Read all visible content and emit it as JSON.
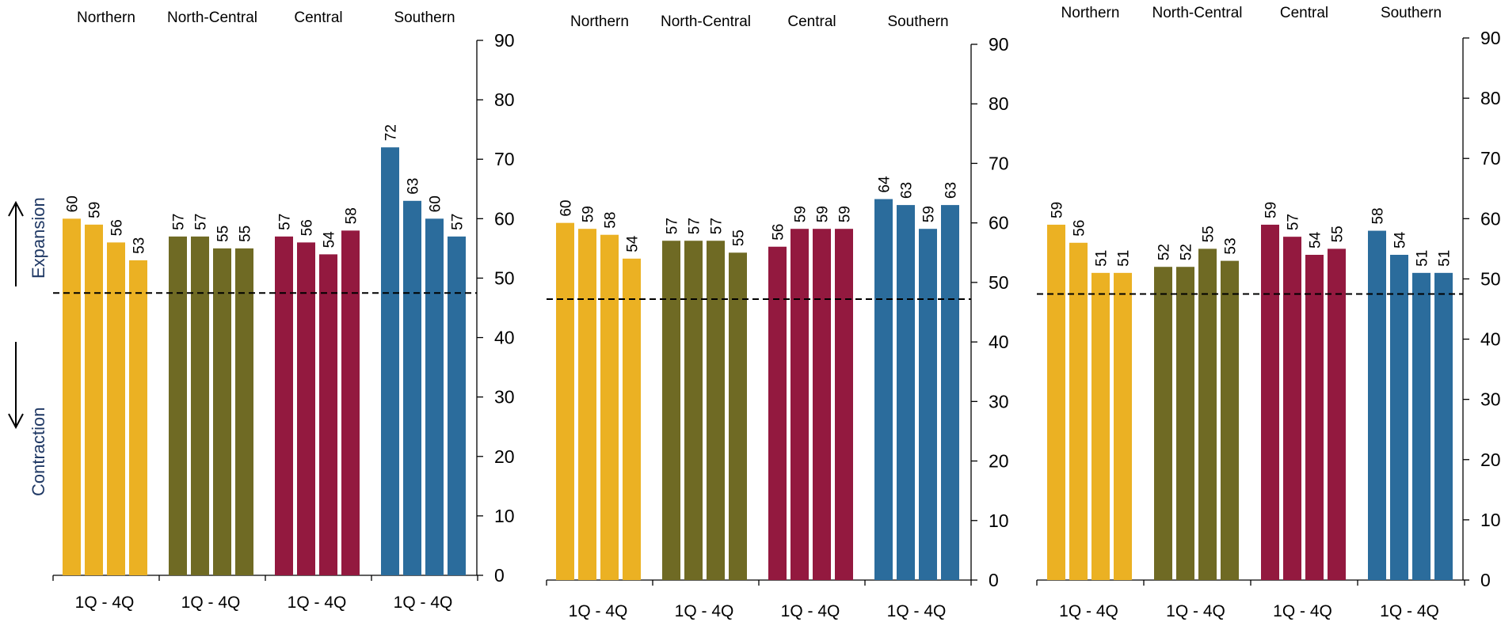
{
  "colors": {
    "Northern": "#EBB123",
    "North-Central": "#6F6A24",
    "Central": "#93193F",
    "Southern": "#2B6C9C",
    "axis": "#000000",
    "side_label": "#1F3864"
  },
  "side_labels": {
    "expansion": "Expansion",
    "contraction": "Contraction"
  },
  "chart_data": [
    {
      "type": "bar",
      "groups": [
        "Northern",
        "North-Central",
        "Central",
        "Southern"
      ],
      "group_xlabel": "1Q  -  4Q",
      "series": [
        {
          "name": "Northern",
          "values": [
            60,
            59,
            56,
            53
          ]
        },
        {
          "name": "North-Central",
          "values": [
            57,
            57,
            55,
            55
          ]
        },
        {
          "name": "Central",
          "values": [
            57,
            56,
            54,
            58
          ]
        },
        {
          "name": "Southern",
          "values": [
            72,
            63,
            60,
            57
          ]
        }
      ],
      "ylim": [
        0,
        90
      ],
      "yticks": [
        0,
        10,
        20,
        30,
        40,
        50,
        60,
        70,
        80,
        90
      ],
      "reference_line": 47.5
    },
    {
      "type": "bar",
      "groups": [
        "Northern",
        "North-Central",
        "Central",
        "Southern"
      ],
      "group_xlabel": "1Q  -  4Q",
      "series": [
        {
          "name": "Northern",
          "values": [
            60,
            59,
            58,
            54
          ]
        },
        {
          "name": "North-Central",
          "values": [
            57,
            57,
            57,
            55
          ]
        },
        {
          "name": "Central",
          "values": [
            56,
            59,
            59,
            59
          ]
        },
        {
          "name": "Southern",
          "values": [
            64,
            63,
            59,
            63
          ]
        }
      ],
      "ylim": [
        0,
        90
      ],
      "yticks": [
        0,
        10,
        20,
        30,
        40,
        50,
        60,
        70,
        80,
        90
      ],
      "reference_line": 47.2
    },
    {
      "type": "bar",
      "groups": [
        "Northern",
        "North-Central",
        "Central",
        "Southern"
      ],
      "group_xlabel": "1Q  -  4Q",
      "series": [
        {
          "name": "Northern",
          "values": [
            59,
            56,
            51,
            51
          ]
        },
        {
          "name": "North-Central",
          "values": [
            52,
            52,
            55,
            53
          ]
        },
        {
          "name": "Central",
          "values": [
            59,
            57,
            54,
            55
          ]
        },
        {
          "name": "Southern",
          "values": [
            58,
            54,
            51,
            51
          ]
        }
      ],
      "ylim": [
        0,
        90
      ],
      "yticks": [
        0,
        10,
        20,
        30,
        40,
        50,
        60,
        70,
        80,
        90
      ],
      "reference_line": 47.5
    }
  ]
}
